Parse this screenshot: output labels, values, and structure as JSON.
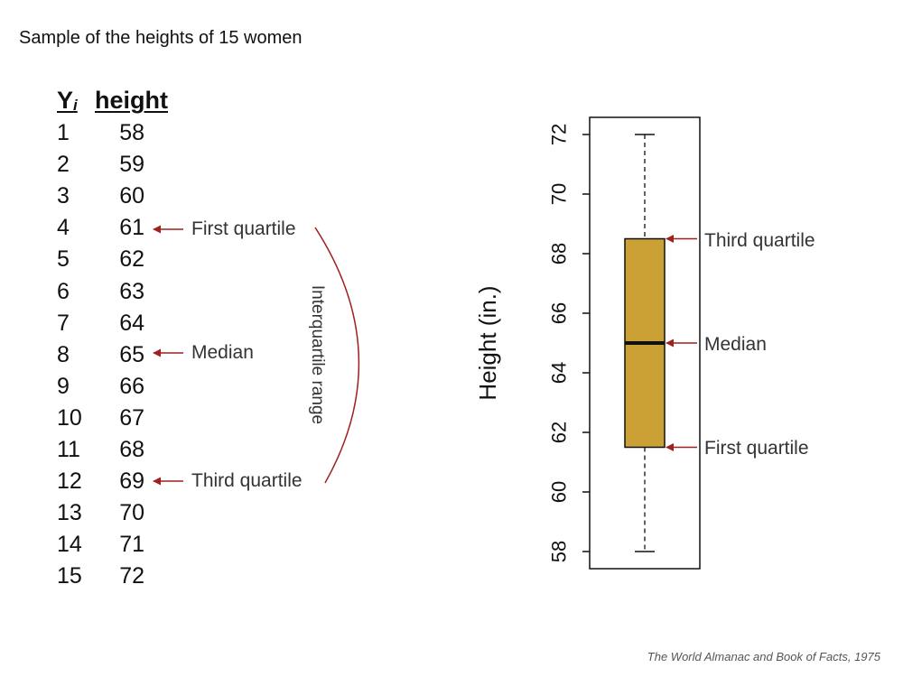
{
  "title": "Sample of the heights of 15 women",
  "table": {
    "col_index_label": "Y",
    "col_index_sub": "i",
    "col_height_label": "height",
    "rows": [
      {
        "i": "1",
        "h": "58"
      },
      {
        "i": "2",
        "h": "59"
      },
      {
        "i": "3",
        "h": "60"
      },
      {
        "i": "4",
        "h": "61"
      },
      {
        "i": "5",
        "h": "62"
      },
      {
        "i": "6",
        "h": "63"
      },
      {
        "i": "7",
        "h": "64"
      },
      {
        "i": "8",
        "h": "65"
      },
      {
        "i": "9",
        "h": "66"
      },
      {
        "i": "10",
        "h": "67"
      },
      {
        "i": "11",
        "h": "68"
      },
      {
        "i": "12",
        "h": "69"
      },
      {
        "i": "13",
        "h": "70"
      },
      {
        "i": "14",
        "h": "71"
      },
      {
        "i": "15",
        "h": "72"
      }
    ]
  },
  "table_annotations": {
    "first_quartile": "First quartile",
    "median": "Median",
    "third_quartile": "Third quartile",
    "iqr": "Interquartile range"
  },
  "chart_annotations": {
    "third_quartile": "Third quartile",
    "median": "Median",
    "first_quartile": "First quartile"
  },
  "footnote": "The World Almanac and Book of Facts, 1975",
  "colors": {
    "box_fill": "#CBA135",
    "arrow": "#A01F1F",
    "axis": "#111111"
  },
  "chart_data": {
    "type": "boxplot",
    "ylabel": "Height (in.)",
    "ylim": [
      58,
      72
    ],
    "yticks": [
      58,
      60,
      62,
      64,
      66,
      68,
      70,
      72
    ],
    "min": 58,
    "q1": 61.5,
    "median": 65,
    "q3": 68.5,
    "max": 72
  }
}
